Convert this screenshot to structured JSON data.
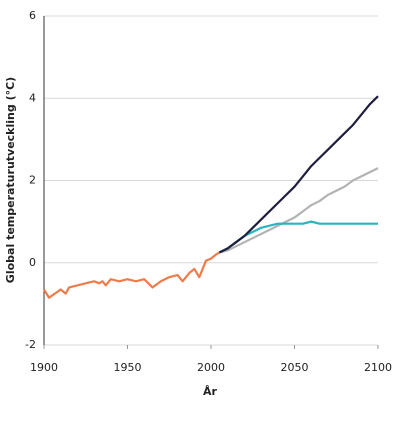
{
  "chart_data": {
    "type": "line",
    "x_label": "År",
    "y_label": "Global temperaturutveckling (°C)",
    "xlim": [
      1900,
      2100
    ],
    "xticks": [
      1900,
      1950,
      2000,
      2050,
      2100
    ],
    "ylim": [
      -2,
      6
    ],
    "yticks": [
      -2,
      0,
      2,
      4,
      6
    ],
    "grid": true,
    "series": [
      {
        "color": "#ee7c4a",
        "x": [
          1900,
          1903,
          1910,
          1913,
          1915,
          1925,
          1930,
          1933,
          1935,
          1937,
          1940,
          1945,
          1950,
          1955,
          1960,
          1965,
          1970,
          1975,
          1980,
          1983,
          1987,
          1990,
          1993,
          1997,
          2000,
          2003,
          2005
        ],
        "values": [
          -0.65,
          -0.85,
          -0.65,
          -0.75,
          -0.6,
          -0.5,
          -0.45,
          -0.5,
          -0.45,
          -0.55,
          -0.4,
          -0.45,
          -0.4,
          -0.45,
          -0.4,
          -0.6,
          -0.45,
          -0.35,
          -0.3,
          -0.45,
          -0.25,
          -0.15,
          -0.35,
          0.05,
          0.1,
          0.2,
          0.25
        ]
      },
      {
        "color": "#b3b3b3",
        "x": [
          2005,
          2010,
          2015,
          2020,
          2025,
          2030,
          2035,
          2040,
          2045,
          2050,
          2055,
          2060,
          2065,
          2070,
          2075,
          2080,
          2085,
          2090,
          2095,
          2100
        ],
        "values": [
          0.25,
          0.3,
          0.4,
          0.5,
          0.6,
          0.7,
          0.8,
          0.9,
          1.0,
          1.1,
          1.25,
          1.4,
          1.5,
          1.65,
          1.75,
          1.85,
          2.0,
          2.1,
          2.2,
          2.3
        ]
      },
      {
        "color": "#2bb3c0",
        "x": [
          2005,
          2010,
          2015,
          2020,
          2025,
          2030,
          2035,
          2040,
          2045,
          2050,
          2055,
          2060,
          2065,
          2070,
          2075,
          2080,
          2085,
          2090,
          2095,
          2100
        ],
        "values": [
          0.25,
          0.35,
          0.5,
          0.65,
          0.75,
          0.85,
          0.9,
          0.95,
          0.95,
          0.95,
          0.95,
          1.0,
          0.95,
          0.95,
          0.95,
          0.95,
          0.95,
          0.95,
          0.95,
          0.95
        ]
      },
      {
        "color": "#1f1f3d",
        "x": [
          2005,
          2010,
          2015,
          2020,
          2025,
          2030,
          2035,
          2040,
          2045,
          2050,
          2055,
          2060,
          2065,
          2070,
          2075,
          2080,
          2085,
          2090,
          2095,
          2100
        ],
        "values": [
          0.25,
          0.35,
          0.5,
          0.65,
          0.85,
          1.05,
          1.25,
          1.45,
          1.65,
          1.85,
          2.1,
          2.35,
          2.55,
          2.75,
          2.95,
          3.15,
          3.35,
          3.6,
          3.85,
          4.05
        ]
      }
    ]
  }
}
